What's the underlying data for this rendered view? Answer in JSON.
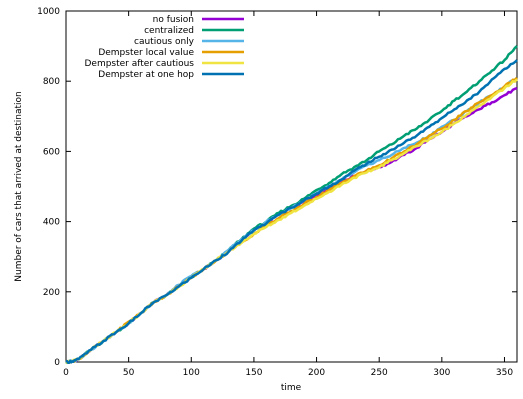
{
  "chart_data": {
    "type": "line",
    "title": "",
    "xlabel": "time",
    "ylabel": "Number of cars that arrived at destination",
    "xlim": [
      0,
      360
    ],
    "ylim": [
      0,
      1000
    ],
    "xticks": [
      0,
      50,
      100,
      150,
      200,
      250,
      300,
      350
    ],
    "yticks": [
      0,
      200,
      400,
      600,
      800,
      1000
    ],
    "grid": false,
    "legend_position": "top-left",
    "series": [
      {
        "name": "no fusion",
        "color": "#9400d3",
        "x": [
          0,
          5,
          10,
          20,
          30,
          40,
          50,
          60,
          70,
          80,
          90,
          100,
          110,
          120,
          130,
          140,
          150,
          160,
          170,
          180,
          190,
          200,
          210,
          220,
          230,
          240,
          250,
          260,
          270,
          280,
          290,
          300,
          310,
          320,
          330,
          340,
          350,
          360
        ],
        "y": [
          0,
          2,
          8,
          35,
          60,
          85,
          110,
          140,
          170,
          190,
          215,
          240,
          265,
          290,
          315,
          345,
          375,
          395,
          420,
          440,
          455,
          475,
          495,
          515,
          530,
          545,
          555,
          570,
          590,
          610,
          635,
          655,
          680,
          700,
          720,
          740,
          760,
          780
        ]
      },
      {
        "name": "centralized",
        "color": "#009e73",
        "x": [
          0,
          5,
          10,
          20,
          30,
          40,
          50,
          60,
          70,
          80,
          90,
          100,
          110,
          120,
          130,
          140,
          150,
          160,
          170,
          180,
          190,
          200,
          210,
          220,
          230,
          240,
          250,
          260,
          270,
          280,
          290,
          300,
          310,
          320,
          330,
          340,
          350,
          360
        ],
        "y": [
          0,
          2,
          8,
          35,
          60,
          85,
          110,
          140,
          170,
          190,
          215,
          240,
          265,
          290,
          320,
          350,
          380,
          400,
          425,
          445,
          465,
          490,
          510,
          535,
          555,
          575,
          600,
          620,
          645,
          665,
          690,
          715,
          745,
          770,
          800,
          830,
          860,
          900
        ]
      },
      {
        "name": "cautious only",
        "color": "#56b4e9",
        "x": [
          0,
          5,
          10,
          20,
          30,
          40,
          50,
          60,
          70,
          80,
          90,
          100,
          110,
          120,
          130,
          140,
          150,
          160,
          170,
          180,
          190,
          200,
          210,
          220,
          230,
          240,
          250,
          260,
          270,
          280,
          290,
          300,
          310,
          320,
          330,
          340,
          350,
          360
        ],
        "y": [
          0,
          2,
          8,
          35,
          60,
          85,
          110,
          140,
          170,
          190,
          220,
          245,
          265,
          290,
          320,
          350,
          375,
          400,
          420,
          440,
          460,
          480,
          500,
          520,
          540,
          560,
          575,
          590,
          610,
          625,
          645,
          670,
          690,
          715,
          740,
          760,
          785,
          810
        ]
      },
      {
        "name": "Dempster local value",
        "color": "#e69f00",
        "x": [
          0,
          5,
          10,
          20,
          30,
          40,
          50,
          60,
          70,
          80,
          90,
          100,
          110,
          120,
          130,
          140,
          150,
          160,
          170,
          180,
          190,
          200,
          210,
          220,
          230,
          240,
          250,
          260,
          270,
          280,
          290,
          300,
          310,
          320,
          330,
          340,
          350,
          360
        ],
        "y": [
          0,
          2,
          8,
          35,
          60,
          85,
          115,
          140,
          170,
          190,
          215,
          240,
          265,
          290,
          315,
          340,
          365,
          390,
          410,
          430,
          450,
          470,
          490,
          510,
          530,
          545,
          560,
          580,
          600,
          620,
          645,
          665,
          690,
          715,
          740,
          760,
          785,
          810
        ]
      },
      {
        "name": "Dempster after cautious",
        "color": "#f0e442",
        "x": [
          0,
          5,
          10,
          20,
          30,
          40,
          50,
          60,
          70,
          80,
          90,
          100,
          110,
          120,
          130,
          140,
          150,
          160,
          170,
          180,
          190,
          200,
          210,
          220,
          230,
          240,
          250,
          260,
          270,
          280,
          290,
          300,
          310,
          320,
          330,
          340,
          350,
          360
        ],
        "y": [
          0,
          2,
          8,
          35,
          60,
          85,
          110,
          140,
          170,
          190,
          215,
          240,
          265,
          290,
          315,
          340,
          365,
          385,
          405,
          425,
          445,
          465,
          485,
          505,
          525,
          540,
          555,
          575,
          595,
          615,
          635,
          655,
          680,
          705,
          730,
          755,
          780,
          805
        ]
      },
      {
        "name": "Dempster at one hop",
        "color": "#0072b2",
        "x": [
          0,
          5,
          10,
          20,
          30,
          40,
          50,
          60,
          70,
          80,
          90,
          100,
          110,
          120,
          130,
          140,
          150,
          160,
          170,
          180,
          190,
          200,
          210,
          220,
          230,
          240,
          250,
          260,
          270,
          280,
          290,
          300,
          310,
          320,
          330,
          340,
          350,
          360
        ],
        "y": [
          0,
          2,
          8,
          35,
          60,
          85,
          110,
          140,
          170,
          190,
          215,
          240,
          265,
          290,
          315,
          345,
          375,
          395,
          420,
          440,
          460,
          480,
          500,
          520,
          545,
          565,
          585,
          605,
          625,
          645,
          670,
          695,
          720,
          745,
          770,
          805,
          835,
          860
        ]
      }
    ]
  }
}
